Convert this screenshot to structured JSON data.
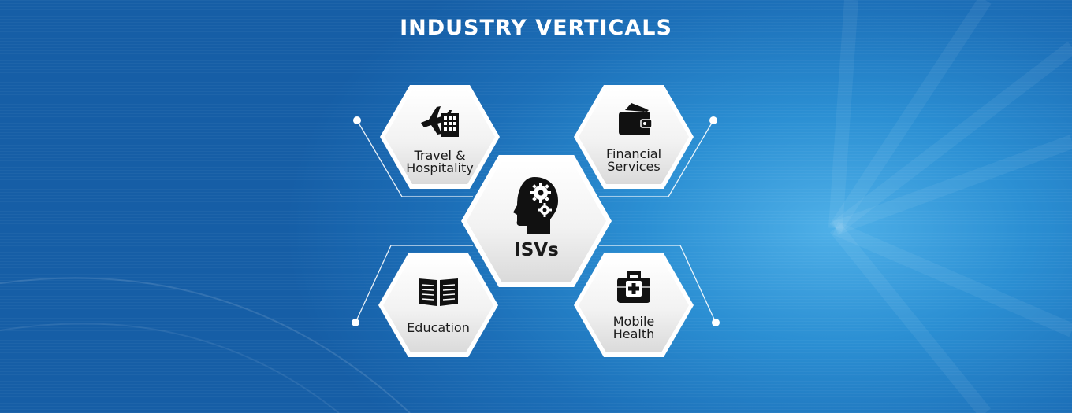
{
  "title": "INDUSTRY VERTICALS",
  "center": {
    "label": "ISVs",
    "icon": "head-gears-icon"
  },
  "verticals": [
    {
      "label": "Travel &\nHospitality",
      "icon": "airplane-building-icon"
    },
    {
      "label": "Financial\nServices",
      "icon": "wallet-icon"
    },
    {
      "label": "Education",
      "icon": "open-book-icon"
    },
    {
      "label": "Mobile\nHealth",
      "icon": "medical-kit-icon"
    }
  ],
  "colors": {
    "background": "#1c6fb8",
    "accent": "#4fb0e8",
    "hex_fill": "#f2f2f2",
    "text": "#1a1a1a"
  }
}
